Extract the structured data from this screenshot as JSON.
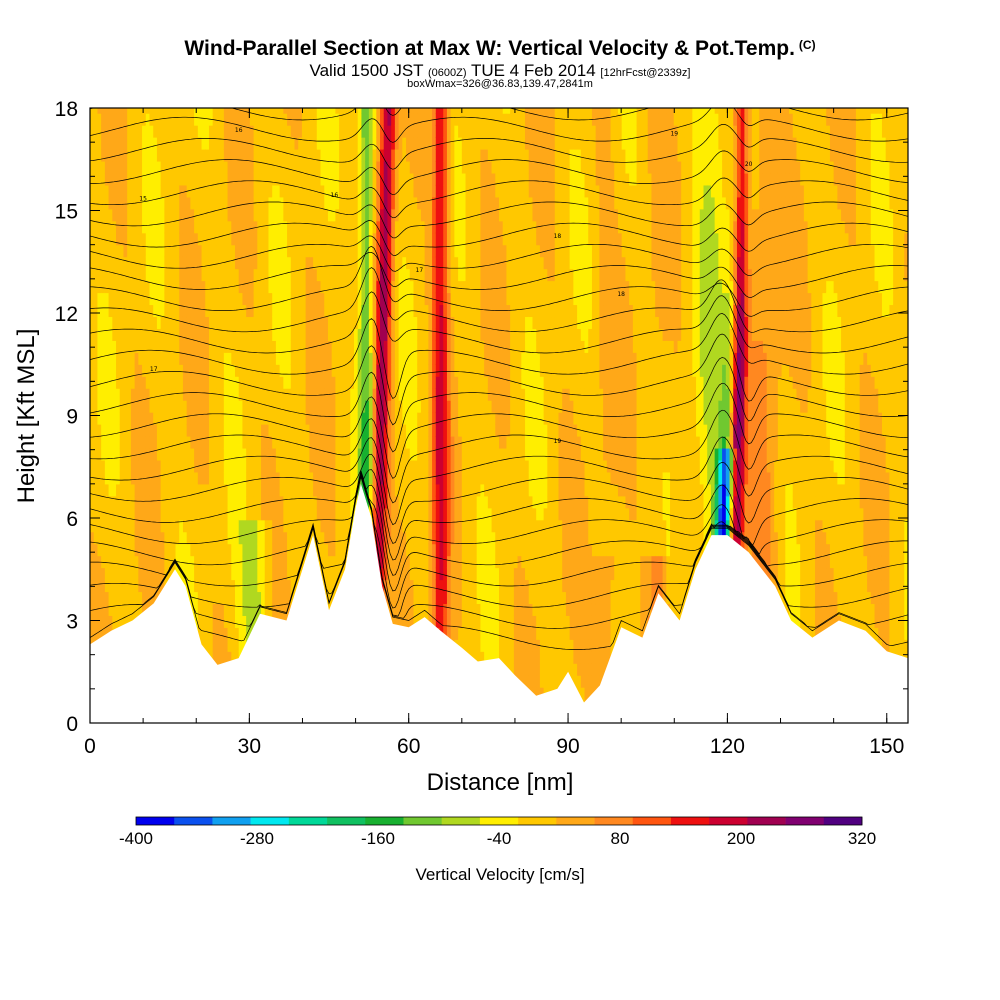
{
  "header": {
    "title": "Wind-Parallel Section at Max W: Vertical Velocity & Pot.Temp.",
    "title_mark": "(C)",
    "line2_a": "Valid 1500 JST",
    "line2_b": "(0600Z)",
    "line2_c": "TUE 4 Feb 2014",
    "line2_d": "[12hrFcst@2339z]",
    "line3": "boxWmax=326@36.83,139.47,2841m"
  },
  "chart_data": {
    "type": "heatmap",
    "xlabel": "Distance [nm]",
    "ylabel": "Height [Kft MSL]",
    "xlim": [
      0,
      154
    ],
    "ylim": [
      0,
      18
    ],
    "x_ticks": [
      "0",
      "30",
      "60",
      "90",
      "120",
      "150"
    ],
    "y_ticks": [
      "0",
      "3",
      "6",
      "9",
      "12",
      "15",
      "18"
    ],
    "colorbar": {
      "title": "Vertical Velocity [cm/s]",
      "labels": [
        "-400",
        "-280",
        "-160",
        "-40",
        "80",
        "200",
        "320"
      ],
      "colors": [
        "#0000ee",
        "#0a50ee",
        "#10a0f0",
        "#00e8f0",
        "#00d898",
        "#10c060",
        "#18b030",
        "#70c830",
        "#b0d820",
        "#ffee00",
        "#ffc800",
        "#ffa818",
        "#ff8820",
        "#ff5510",
        "#ee1010",
        "#cc0030",
        "#a00050",
        "#800070",
        "#500080"
      ]
    },
    "terrain_kft": [
      [
        0,
        2.3
      ],
      [
        4,
        2.7
      ],
      [
        8,
        3.0
      ],
      [
        12,
        3.5
      ],
      [
        16,
        4.5
      ],
      [
        18,
        4.0
      ],
      [
        21,
        2.3
      ],
      [
        24,
        1.7
      ],
      [
        28,
        1.9
      ],
      [
        32,
        3.2
      ],
      [
        37,
        3.0
      ],
      [
        42,
        5.5
      ],
      [
        45,
        3.3
      ],
      [
        48,
        4.5
      ],
      [
        50,
        6.3
      ],
      [
        51,
        7.0
      ],
      [
        53,
        6.0
      ],
      [
        55,
        4.0
      ],
      [
        57,
        2.9
      ],
      [
        60,
        2.8
      ],
      [
        63,
        3.1
      ],
      [
        66,
        2.7
      ],
      [
        70,
        2.2
      ],
      [
        73,
        1.8
      ],
      [
        77,
        1.9
      ],
      [
        80,
        1.4
      ],
      [
        84,
        0.8
      ],
      [
        88,
        1.0
      ],
      [
        90,
        1.5
      ],
      [
        93,
        0.6
      ],
      [
        96,
        1.1
      ],
      [
        100,
        2.8
      ],
      [
        104,
        2.5
      ],
      [
        107,
        3.8
      ],
      [
        111,
        3.0
      ],
      [
        114,
        4.5
      ],
      [
        117,
        5.5
      ],
      [
        120,
        5.5
      ],
      [
        124,
        5.0
      ],
      [
        129,
        4.0
      ],
      [
        132,
        3.0
      ],
      [
        136,
        2.5
      ],
      [
        141,
        3.0
      ],
      [
        146,
        2.7
      ],
      [
        150,
        2.1
      ],
      [
        154,
        1.9
      ]
    ],
    "updraft_cores_nm": [
      55,
      66,
      122
    ],
    "downdraft_cores_nm": [
      52,
      120
    ],
    "theta_contour_labels": [
      "15",
      "16",
      "16",
      "17",
      "17",
      "18",
      "18",
      "19",
      "19",
      "20"
    ],
    "w_max": 326
  }
}
